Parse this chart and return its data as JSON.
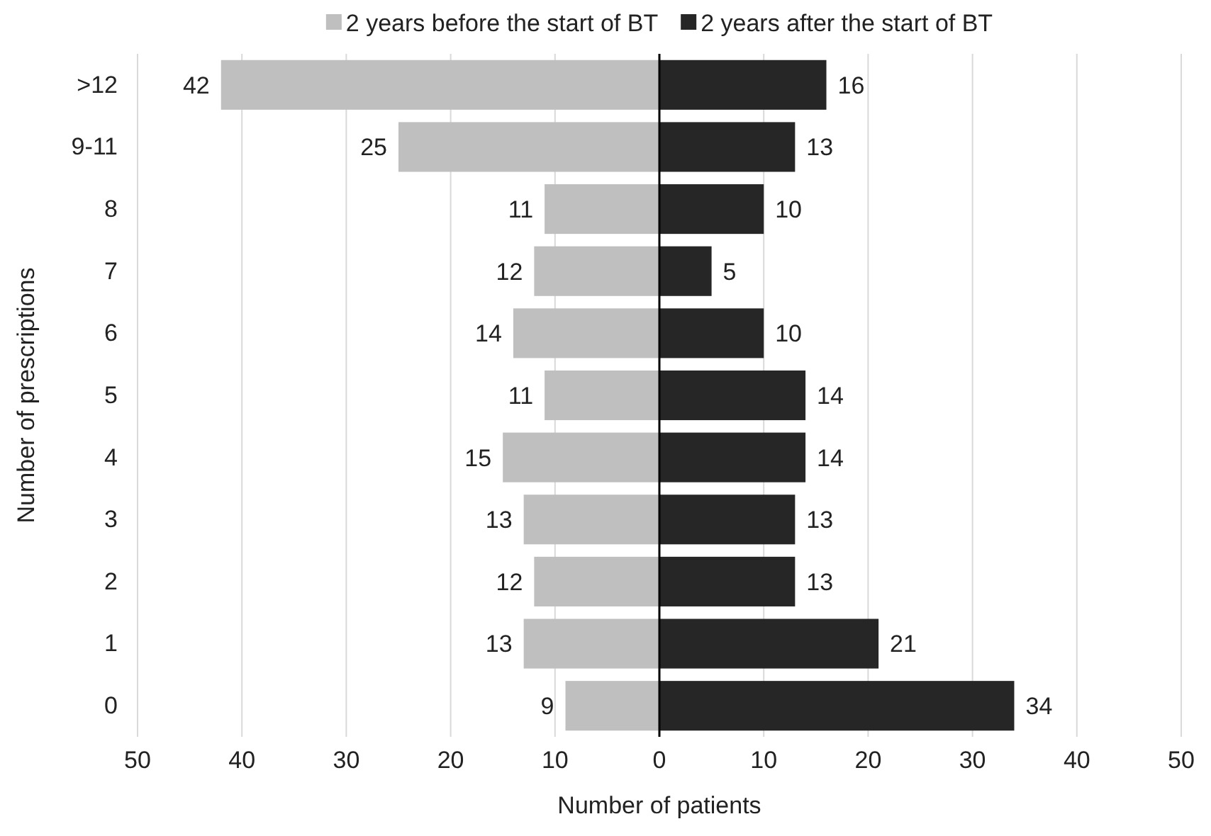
{
  "chart_data": {
    "type": "bar",
    "orientation": "horizontal",
    "xlabel": "Number of patients",
    "ylabel": "Number of prescriptions",
    "categories": [
      ">12",
      "9-11",
      "8",
      "7",
      "6",
      "5",
      "4",
      "3",
      "2",
      "1",
      "0"
    ],
    "series": [
      {
        "name": "2 years before the start of BT",
        "color": "#bfbfbf",
        "values": [
          42,
          25,
          11,
          12,
          14,
          11,
          15,
          13,
          12,
          13,
          9
        ],
        "base": [
          -42,
          -25,
          -11,
          -12,
          -14,
          -11,
          -15,
          -13,
          -12,
          -13,
          -9
        ]
      },
      {
        "name": "2 years after the start of BT",
        "color": "#262626",
        "values": [
          16,
          13,
          10,
          5,
          10,
          14,
          14,
          13,
          13,
          21,
          34
        ]
      }
    ],
    "data_labels": true,
    "xlim": [
      -50,
      50
    ],
    "xticks": [
      {
        "value": -50,
        "label": "50"
      },
      {
        "value": -40,
        "label": "40"
      },
      {
        "value": -30,
        "label": "30"
      },
      {
        "value": -20,
        "label": "20"
      },
      {
        "value": -10,
        "label": "10"
      },
      0,
      10,
      20,
      30,
      40,
      50
    ],
    "grid": "x",
    "legend": "top"
  }
}
